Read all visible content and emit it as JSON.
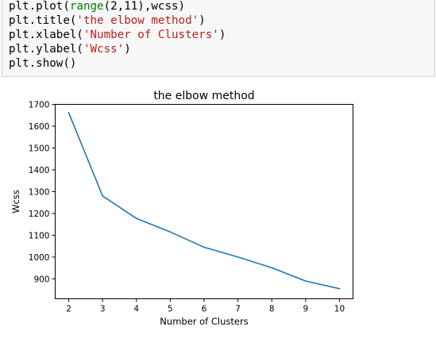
{
  "code_cell": {
    "lines": [
      [
        {
          "t": "plt.plot(",
          "c": ""
        },
        {
          "t": "range",
          "c": "builtin"
        },
        {
          "t": "(2,11),wcss)",
          "c": ""
        }
      ],
      [
        {
          "t": "plt.title(",
          "c": ""
        },
        {
          "t": "'the elbow method'",
          "c": "str"
        },
        {
          "t": ")",
          "c": ""
        }
      ],
      [
        {
          "t": "plt.xlabel(",
          "c": ""
        },
        {
          "t": "'Number of Clusters'",
          "c": "str"
        },
        {
          "t": ")",
          "c": ""
        }
      ],
      [
        {
          "t": "plt.ylabel(",
          "c": ""
        },
        {
          "t": "'Wcss'",
          "c": "str"
        },
        {
          "t": ")",
          "c": ""
        }
      ],
      [
        {
          "t": "plt.show()",
          "c": ""
        }
      ]
    ]
  },
  "colors": {
    "line": "#1f77b4",
    "string": "#ba2121",
    "builtin": "#008000",
    "code_bg": "#f7f7f7"
  },
  "chart_data": {
    "type": "line",
    "title": "the elbow method",
    "xlabel": "Number of Clusters",
    "ylabel": "Wcss",
    "x": [
      2,
      3,
      4,
      5,
      6,
      7,
      8,
      9,
      10
    ],
    "series": [
      {
        "values": [
          1662,
          1280,
          1177,
          1115,
          1045,
          1000,
          951,
          890,
          855
        ]
      }
    ],
    "xticks": [
      2,
      3,
      4,
      5,
      6,
      7,
      8,
      9,
      10
    ],
    "yticks": [
      900,
      1000,
      1100,
      1200,
      1300,
      1400,
      1500,
      1600,
      1700
    ],
    "xlim": [
      1.6,
      10.4
    ],
    "ylim": [
      808.65,
      1700
    ],
    "grid": false,
    "legend": "none"
  }
}
